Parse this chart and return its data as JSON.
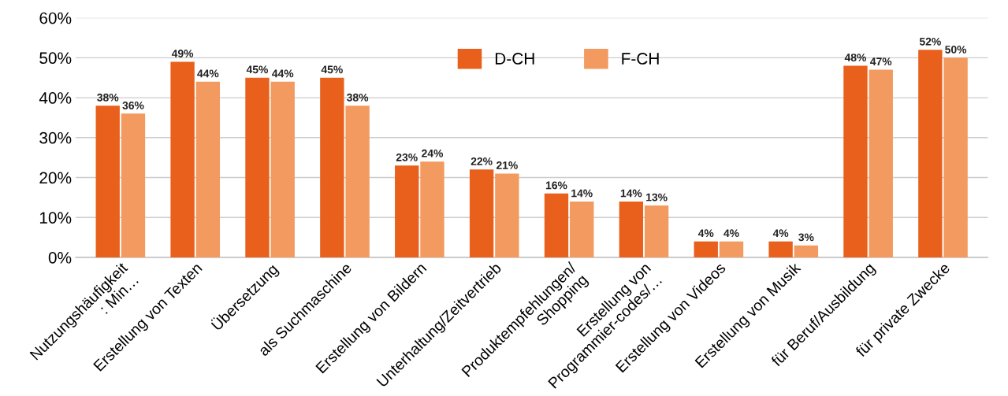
{
  "chart_data": {
    "type": "bar",
    "categories": [
      "Nutzungshäufigkeit\n: Min…",
      "Erstellung von Texten",
      "Übersetzung",
      "als Suchmaschine",
      "Erstellung von Bildern",
      "Unterhaltung/Zeitvertrieb",
      "Produktempfehlungen/\nShopping",
      "Erstellung von\nProgrammier-codes/…",
      "Erstellung von Videos",
      "Erstellung von Musik",
      "für Beruf/Ausbildung",
      "für private Zwecke"
    ],
    "series": [
      {
        "name": "D-CH",
        "color": "#e8601c",
        "values": [
          38,
          49,
          45,
          45,
          23,
          22,
          16,
          14,
          4,
          4,
          48,
          52
        ],
        "value_labels": [
          "38%",
          "49%",
          "45%",
          "45%",
          "23%",
          "22%",
          "16%",
          "14%",
          "4%",
          "4%",
          "48%",
          "52%"
        ]
      },
      {
        "name": "F-CH",
        "color": "#f39a60",
        "values": [
          36,
          44,
          44,
          38,
          24,
          21,
          14,
          13,
          4,
          3,
          47,
          50
        ],
        "value_labels": [
          "36%",
          "44%",
          "44%",
          "38%",
          "24%",
          "21%",
          "14%",
          "13%",
          "4%",
          "3%",
          "47%",
          "50%"
        ]
      }
    ],
    "ylim": [
      0,
      60
    ],
    "yticks": [
      {
        "value": 0,
        "label": "0%"
      },
      {
        "value": 10,
        "label": "10%"
      },
      {
        "value": 20,
        "label": "20%"
      },
      {
        "value": 30,
        "label": "30%"
      },
      {
        "value": 40,
        "label": "40%"
      },
      {
        "value": 50,
        "label": "50%"
      },
      {
        "value": 60,
        "label": "60%"
      }
    ],
    "grid": "y",
    "legend": "top"
  }
}
